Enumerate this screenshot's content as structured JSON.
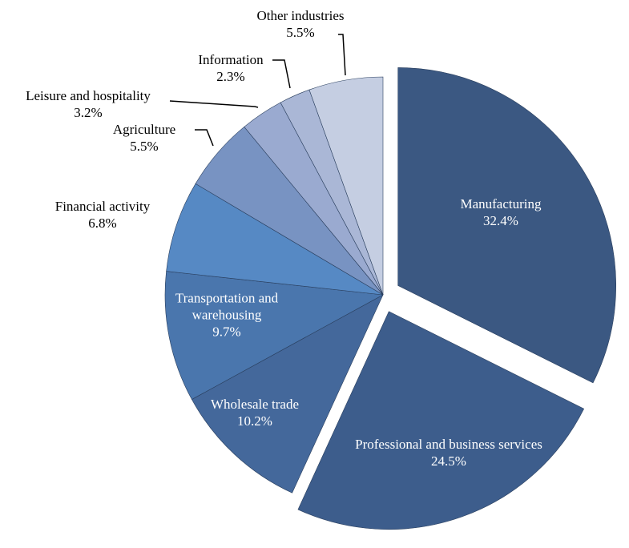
{
  "chart_data": {
    "type": "pie",
    "categories": [
      "Manufacturing",
      "Professional and business services",
      "Wholesale trade",
      "Transportation and warehousing",
      "Financial activity",
      "Agriculture",
      "Leisure and hospitality",
      "Information",
      "Other industries"
    ],
    "values": [
      32.4,
      24.5,
      10.2,
      9.7,
      6.8,
      5.5,
      3.2,
      2.3,
      5.5
    ],
    "value_labels": [
      "32.4%",
      "24.5%",
      "10.2%",
      "9.7%",
      "6.8%",
      "5.5%",
      "3.2%",
      "2.3%",
      "5.5%"
    ],
    "colors": [
      "#3b5882",
      "#3d5d8c",
      "#44689b",
      "#4a76ad",
      "#5689c4",
      "#7893c2",
      "#9aaad0",
      "#aab7d6",
      "#c5cee2"
    ]
  }
}
